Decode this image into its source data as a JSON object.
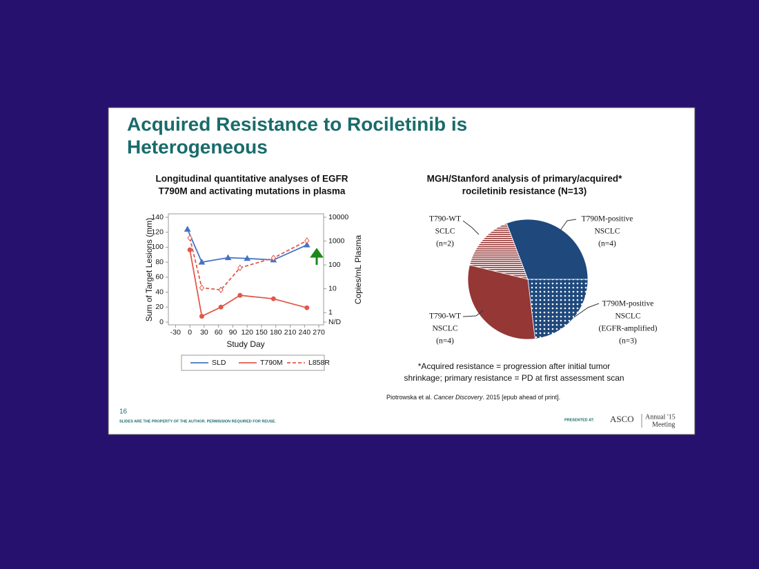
{
  "slide": {
    "title_lines": [
      "Acquired Resistance to Rociletinib is",
      "Heterogeneous"
    ],
    "footnote_lines": [
      "*Acquired resistance = progression after initial tumor",
      "shrinkage; primary resistance = PD at first assessment scan"
    ],
    "citation": [
      "Piotrowska et al. ",
      "Cancer Discovery",
      ". 2015 [epub ahead of print]."
    ],
    "footer": {
      "page": "16",
      "notice": "SLIDES ARE THE PROPERTY OF THE AUTHOR. PERMISSION REQUIRED FOR REUSE.",
      "presented": "PRESENTED AT:",
      "logo": "ASCO",
      "meeting_lines": [
        "Annual '15",
        "Meeting"
      ]
    }
  },
  "chart_data": [
    {
      "type": "line",
      "title": [
        "Longitudinal quantitative analyses of EGFR",
        "T790M and activating mutations in plasma"
      ],
      "xlabel": "Study Day",
      "ylabel": "Sum of Target Lesions (mm)",
      "y2label": "Copies/mL Plasma",
      "xlim": [
        -45,
        280
      ],
      "xticks": [
        -30,
        0,
        30,
        60,
        90,
        120,
        150,
        180,
        210,
        240,
        270
      ],
      "ylim": [
        0,
        140
      ],
      "yticks": [
        0,
        20,
        40,
        60,
        80,
        100,
        120,
        140
      ],
      "y2lim": [
        0.4,
        10000
      ],
      "y2log": true,
      "y2ticks": [
        {
          "value": 0.4,
          "label": "N/D"
        },
        1,
        10,
        100,
        1000,
        10000
      ],
      "series": [
        {
          "name": "SLD",
          "color": "#4472c4",
          "marker": "triangle",
          "dashed": false,
          "x": [
            -5,
            25,
            80,
            120,
            175,
            245
          ],
          "values": [
            124,
            80,
            86,
            85,
            83,
            103
          ]
        },
        {
          "name": "T790M",
          "color": "#e0584a",
          "marker": "circle",
          "dashed": false,
          "axis": "y2",
          "x": [
            0,
            25,
            65,
            105,
            175,
            245
          ],
          "values": [
            430,
            0.7,
            1.7,
            5.3,
            3.8,
            1.6
          ]
        },
        {
          "name": "L858R",
          "color": "#e0584a",
          "marker": "diamond",
          "dashed": true,
          "axis": "y2",
          "x": [
            0,
            25,
            65,
            105,
            175,
            245
          ],
          "values": [
            1350,
            11,
            9,
            76,
            195,
            1040
          ]
        }
      ]
    },
    {
      "type": "pie",
      "title": [
        "MGH/Stanford analysis of primary/acquired*",
        "rociletinib resistance (N=13)"
      ],
      "categories": [
        [
          "T790M-positive",
          "NSCLC"
        ],
        [
          "T790M-positive",
          "NSCLC",
          "(EGFR-amplified)"
        ],
        [
          "T790-WT",
          "NSCLC"
        ],
        [
          "T790-WT",
          "SCLC"
        ]
      ],
      "values": [
        4,
        3,
        4,
        2
      ],
      "value_labels": [
        "(n=4)",
        "(n=3)",
        "(n=4)",
        "(n=2)"
      ],
      "colors": [
        "#1f497d",
        "#1f497d",
        "#953735",
        "#953735"
      ]
    }
  ]
}
